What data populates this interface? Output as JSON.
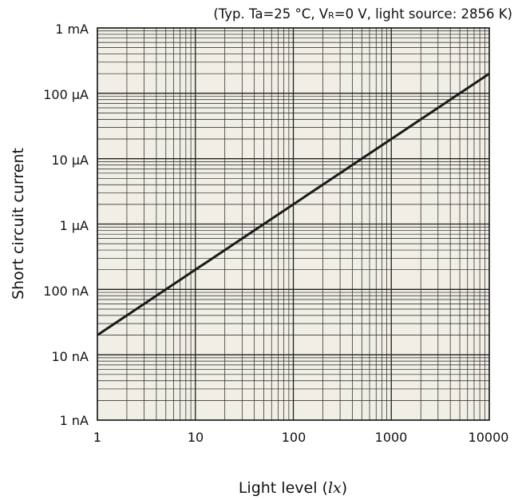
{
  "chart_data": {
    "type": "line",
    "conditions": {
      "prefix": "(Typ. Ta=25 °C, V",
      "subscript": "R",
      "suffix": "=0 V, light source: 2856 K)"
    },
    "xlabel": {
      "text": "Light level (",
      "unit": "lx",
      "close": ")"
    },
    "ylabel": "Short  circuit current",
    "x_scale": "log",
    "y_scale": "log",
    "xlim": [
      1,
      10000
    ],
    "ylim": [
      "1 nA",
      "1 mA"
    ],
    "x_tick_labels": [
      "1",
      "10",
      "100",
      "1000",
      "10000"
    ],
    "y_tick_labels": [
      "1 mA",
      "100 µA",
      "10 µA",
      "1 µA",
      "100 nA",
      "10 nA",
      "1 nA"
    ],
    "grid": true,
    "series": [
      {
        "x": [
          1,
          10000
        ],
        "y_amperes": [
          2e-08,
          0.0002
        ],
        "color": "#1a1a1a"
      }
    ],
    "colors": {
      "plot_background": "#f1eee6",
      "grid": "#1f1f1f",
      "line": "#1a1a1a"
    }
  }
}
